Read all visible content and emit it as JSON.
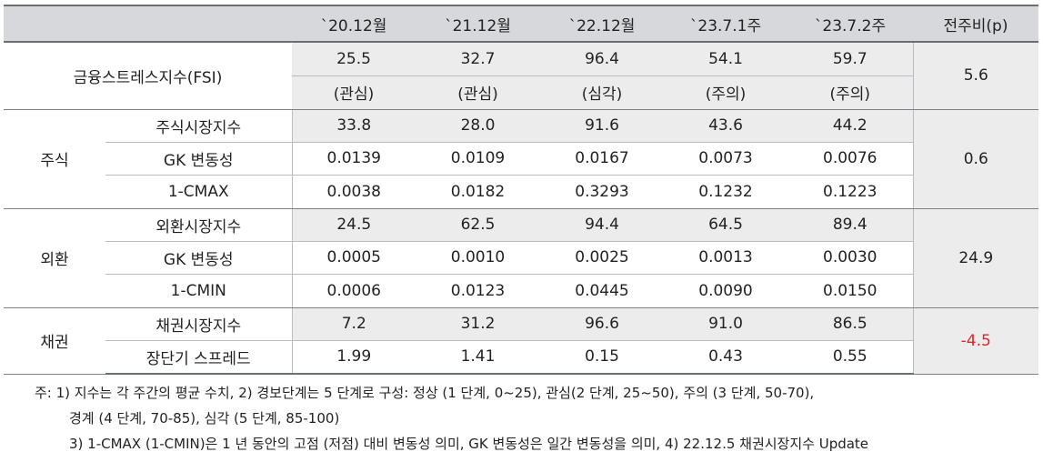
{
  "header": {
    "blank": "",
    "cols": [
      "`20.12월",
      "`21.12월",
      "`22.12월",
      "`23.7.1주",
      "`23.7.2주",
      "전주비(p)"
    ]
  },
  "fsi": {
    "label": "금융스트레스지수(FSI)",
    "values": [
      "25.5",
      "32.7",
      "96.4",
      "54.1",
      "59.7"
    ],
    "stages": [
      "(관심)",
      "(관심)",
      "(심각)",
      "(주의)",
      "(주의)"
    ],
    "change": "5.6"
  },
  "stock": {
    "group": "주식",
    "rows": [
      {
        "label": "주식시장지수",
        "values": [
          "33.8",
          "28.0",
          "91.6",
          "43.6",
          "44.2"
        ]
      },
      {
        "label": "GK 변동성",
        "values": [
          "0.0139",
          "0.0109",
          "0.0167",
          "0.0073",
          "0.0076"
        ]
      },
      {
        "label": "1-CMAX",
        "values": [
          "0.0038",
          "0.0182",
          "0.3293",
          "0.1232",
          "0.1223"
        ]
      }
    ],
    "change": "0.6"
  },
  "fx": {
    "group": "외환",
    "rows": [
      {
        "label": "외환시장지수",
        "values": [
          "24.5",
          "62.5",
          "94.4",
          "64.5",
          "89.4"
        ]
      },
      {
        "label": "GK 변동성",
        "values": [
          "0.0005",
          "0.0010",
          "0.0025",
          "0.0013",
          "0.0030"
        ]
      },
      {
        "label": "1-CMIN",
        "values": [
          "0.0006",
          "0.0123",
          "0.0445",
          "0.0090",
          "0.0150"
        ]
      }
    ],
    "change": "24.9"
  },
  "bond": {
    "group": "채권",
    "rows": [
      {
        "label": "채권시장지수",
        "values": [
          "7.2",
          "31.2",
          "96.6",
          "91.0",
          "86.5"
        ]
      },
      {
        "label": "장단기 스프레드",
        "values": [
          "1.99",
          "1.41",
          "0.15",
          "0.43",
          "0.55"
        ]
      }
    ],
    "change": "-4.5"
  },
  "notes": [
    "주: 1) 지수는 각 주간의 평균 수치, 2) 경보단계는 5 단계로 구성: 정상 (1 단계, 0~25), 관심(2 단계, 25~50), 주의 (3 단계, 50-70),",
    "경계 (4 단계, 70-85), 심각 (5 단계, 85-100)",
    "3) 1-CMAX (1-CMIN)은 1 년 동안의 고점 (저점) 대비 변동성 의미, GK 변동성은 일간 변동성을 의미, 4) 22.12.5 채권시장지수 Update"
  ],
  "colors": {
    "header_bg": "#d7d8db",
    "shade_bg": "#ececed",
    "negative": "#e0262b"
  }
}
